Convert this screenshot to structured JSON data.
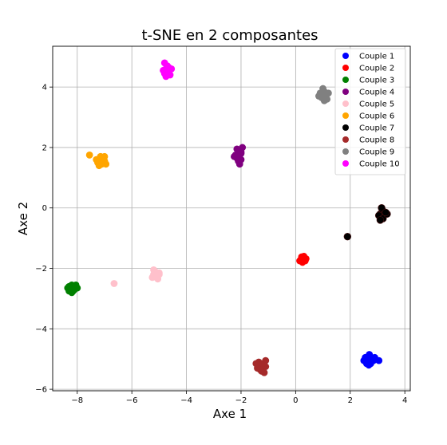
{
  "chart_data": {
    "type": "scatter",
    "title": "t-SNE en 2 composantes",
    "xlabel": "Axe 1",
    "ylabel": "Axe 2",
    "xlim": [
      -8.9,
      4.2
    ],
    "ylim": [
      -6.05,
      5.35
    ],
    "xticks": [
      -8,
      -6,
      -4,
      -2,
      0,
      2,
      4
    ],
    "yticks": [
      -6,
      -4,
      -2,
      0,
      2,
      4
    ],
    "grid": true,
    "legend_position": "top-right",
    "series": [
      {
        "name": "Couple 1",
        "color": "#0000ff",
        "points": [
          [
            2.6,
            -5.0
          ],
          [
            2.7,
            -4.9
          ],
          [
            2.8,
            -5.0
          ],
          [
            2.65,
            -5.1
          ],
          [
            2.55,
            -4.95
          ],
          [
            2.75,
            -5.15
          ],
          [
            2.9,
            -4.95
          ],
          [
            2.6,
            -5.15
          ],
          [
            2.85,
            -5.05
          ],
          [
            2.7,
            -4.85
          ],
          [
            3.05,
            -5.05
          ],
          [
            2.5,
            -5.05
          ],
          [
            2.78,
            -4.95
          ],
          [
            2.68,
            -5.2
          ]
        ]
      },
      {
        "name": "Couple 2",
        "color": "#ff0000",
        "points": [
          [
            0.2,
            -1.7
          ],
          [
            0.3,
            -1.65
          ],
          [
            0.35,
            -1.75
          ],
          [
            0.25,
            -1.8
          ],
          [
            0.15,
            -1.75
          ],
          [
            0.3,
            -1.6
          ],
          [
            0.38,
            -1.68
          ],
          [
            0.22,
            -1.62
          ]
        ]
      },
      {
        "name": "Couple 3",
        "color": "#008000",
        "points": [
          [
            -8.3,
            -2.6
          ],
          [
            -8.2,
            -2.55
          ],
          [
            -8.1,
            -2.6
          ],
          [
            -8.25,
            -2.7
          ],
          [
            -8.15,
            -2.75
          ],
          [
            -8.35,
            -2.65
          ],
          [
            -8.05,
            -2.55
          ],
          [
            -8.2,
            -2.8
          ],
          [
            -8.0,
            -2.65
          ],
          [
            -8.3,
            -2.75
          ],
          [
            -8.1,
            -2.7
          ]
        ]
      },
      {
        "name": "Couple 4",
        "color": "#800080",
        "points": [
          [
            -2.1,
            1.7
          ],
          [
            -2.0,
            1.8
          ],
          [
            -2.05,
            1.9
          ],
          [
            -2.15,
            1.65
          ],
          [
            -2.2,
            1.75
          ],
          [
            -2.0,
            1.6
          ],
          [
            -1.95,
            2.0
          ],
          [
            -2.1,
            1.55
          ],
          [
            -2.25,
            1.7
          ],
          [
            -2.05,
            1.45
          ],
          [
            -2.0,
            1.85
          ],
          [
            -2.15,
            1.95
          ]
        ]
      },
      {
        "name": "Couple 5",
        "color": "#ffc0cb",
        "points": [
          [
            -5.2,
            -2.2
          ],
          [
            -5.1,
            -2.3
          ],
          [
            -5.15,
            -2.1
          ],
          [
            -5.0,
            -2.2
          ],
          [
            -5.25,
            -2.3
          ],
          [
            -5.05,
            -2.35
          ],
          [
            -5.2,
            -2.05
          ],
          [
            -5.0,
            -2.15
          ],
          [
            -5.1,
            -2.25
          ],
          [
            -6.65,
            -2.5
          ]
        ]
      },
      {
        "name": "Couple 6",
        "color": "#ffa500",
        "points": [
          [
            -7.2,
            1.6
          ],
          [
            -7.1,
            1.5
          ],
          [
            -7.05,
            1.65
          ],
          [
            -7.25,
            1.5
          ],
          [
            -7.15,
            1.7
          ],
          [
            -7.0,
            1.55
          ],
          [
            -6.95,
            1.45
          ],
          [
            -7.3,
            1.6
          ],
          [
            -7.55,
            1.75
          ],
          [
            -7.1,
            1.45
          ],
          [
            -7.2,
            1.4
          ],
          [
            -7.0,
            1.7
          ]
        ]
      },
      {
        "name": "Couple 7",
        "color": "#000000",
        "points": [
          [
            3.1,
            -0.2
          ],
          [
            3.2,
            -0.1
          ],
          [
            3.15,
            -0.3
          ],
          [
            3.25,
            -0.2
          ],
          [
            3.05,
            -0.25
          ],
          [
            3.2,
            -0.35
          ],
          [
            3.35,
            -0.2
          ],
          [
            3.15,
            0.0
          ],
          [
            3.1,
            -0.4
          ],
          [
            3.3,
            -0.15
          ],
          [
            1.9,
            -0.95
          ]
        ]
      },
      {
        "name": "Couple 8",
        "color": "#a52a2a",
        "points": [
          [
            -1.3,
            -5.2
          ],
          [
            -1.2,
            -5.3
          ],
          [
            -1.35,
            -5.1
          ],
          [
            -1.1,
            -5.25
          ],
          [
            -1.4,
            -5.3
          ],
          [
            -1.25,
            -5.4
          ],
          [
            -1.1,
            -5.05
          ],
          [
            -1.15,
            -5.45
          ],
          [
            -1.45,
            -5.15
          ],
          [
            -1.3,
            -5.35
          ],
          [
            -1.2,
            -5.15
          ]
        ]
      },
      {
        "name": "Couple 9",
        "color": "#808080",
        "points": [
          [
            1.0,
            3.75
          ],
          [
            1.05,
            3.85
          ],
          [
            0.95,
            3.65
          ],
          [
            1.1,
            3.7
          ],
          [
            0.9,
            3.8
          ],
          [
            1.15,
            3.6
          ],
          [
            1.05,
            3.55
          ],
          [
            1.0,
            3.95
          ],
          [
            1.2,
            3.8
          ],
          [
            0.85,
            3.7
          ]
        ]
      },
      {
        "name": "Couple 10",
        "color": "#ff00ff",
        "points": [
          [
            -4.75,
            4.6
          ],
          [
            -4.65,
            4.5
          ],
          [
            -4.7,
            4.7
          ],
          [
            -4.8,
            4.45
          ],
          [
            -4.6,
            4.4
          ],
          [
            -4.85,
            4.55
          ],
          [
            -4.75,
            4.35
          ],
          [
            -4.55,
            4.6
          ],
          [
            -4.8,
            4.8
          ],
          [
            -4.65,
            4.65
          ],
          [
            -4.7,
            4.4
          ]
        ]
      }
    ]
  }
}
